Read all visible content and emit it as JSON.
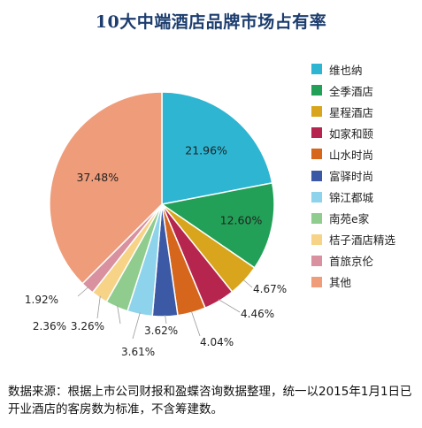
{
  "chart_data": {
    "type": "pie",
    "title": "10大中端酒店品牌市场占有率",
    "labels": [
      "维也纳",
      "全季酒店",
      "星程酒店",
      "如家和颐",
      "山水时尚",
      "富驿时尚",
      "锦江都城",
      "南苑e家",
      "桔子酒店精选",
      "首旅京伦",
      "其他"
    ],
    "values": [
      21.96,
      12.6,
      4.67,
      4.46,
      4.04,
      3.62,
      3.61,
      3.26,
      2.36,
      1.92,
      37.48
    ],
    "value_labels": [
      "21.96%",
      "12.60%",
      "4.67%",
      "4.46%",
      "4.04%",
      "3.62%",
      "3.61%",
      "3.26%",
      "2.36%",
      "1.92%",
      "37.48%"
    ],
    "colors": [
      "#2db5d2",
      "#22a057",
      "#d8a51c",
      "#b5254e",
      "#d7661d",
      "#3c59a5",
      "#8ed3ec",
      "#8fcc8d",
      "#f6d387",
      "#d9909f",
      "#ef9c7a"
    ],
    "legend_position": "right"
  },
  "source_note": "数据来源：根据上市公司财报和盈蝶咨询数据整理，统一以2015年1月1日已开业酒店的客房数为标准，不含筹建数。"
}
